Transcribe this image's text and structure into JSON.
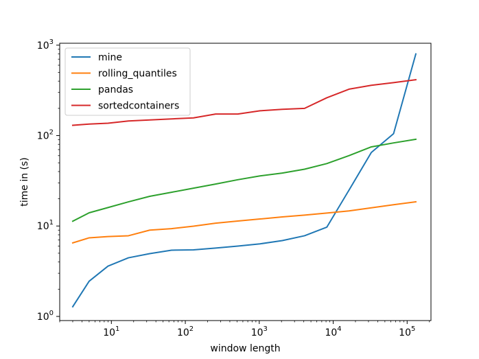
{
  "chart_data": {
    "type": "line",
    "title": "",
    "xlabel": "window length",
    "ylabel": "time in (s)",
    "xscale": "log",
    "yscale": "log",
    "xlim": [
      2.0,
      210000
    ],
    "ylim": [
      0.9,
      1050
    ],
    "grid": false,
    "legend_position": "top-left",
    "xticks": [
      {
        "value": 10,
        "base": "10",
        "exp": "1"
      },
      {
        "value": 100,
        "base": "10",
        "exp": "2"
      },
      {
        "value": 1000,
        "base": "10",
        "exp": "3"
      },
      {
        "value": 10000,
        "base": "10",
        "exp": "4"
      },
      {
        "value": 100000,
        "base": "10",
        "exp": "5"
      }
    ],
    "yticks": [
      {
        "value": 1,
        "base": "10",
        "exp": "0"
      },
      {
        "value": 10,
        "base": "10",
        "exp": "1"
      },
      {
        "value": 100,
        "base": "10",
        "exp": "2"
      },
      {
        "value": 1000,
        "base": "10",
        "exp": "3"
      }
    ],
    "x": [
      3,
      5,
      9,
      17,
      33,
      65,
      129,
      257,
      513,
      1025,
      2049,
      4097,
      8193,
      16385,
      32769,
      65537,
      131073
    ],
    "series": [
      {
        "name": "mine",
        "color": "#1f77b4",
        "values": [
          1.28,
          2.45,
          3.6,
          4.45,
          4.95,
          5.4,
          5.45,
          5.7,
          6.0,
          6.35,
          6.9,
          7.8,
          9.7,
          25,
          65,
          105,
          800
        ]
      },
      {
        "name": "rolling_quantiles",
        "color": "#ff7f0e",
        "values": [
          6.5,
          7.4,
          7.65,
          7.8,
          9.0,
          9.35,
          9.95,
          10.75,
          11.35,
          11.95,
          12.6,
          13.2,
          13.9,
          14.7,
          15.9,
          17.2,
          18.5
        ]
      },
      {
        "name": "pandas",
        "color": "#2ca02c",
        "values": [
          11.3,
          14.0,
          16.0,
          18.5,
          21.3,
          23.6,
          26.2,
          29.1,
          32.5,
          35.8,
          38.5,
          42.5,
          49.0,
          60.0,
          75.0,
          83.0,
          91.0
        ]
      },
      {
        "name": "sortedcontainers",
        "color": "#d62728",
        "values": [
          130,
          134,
          137,
          145,
          149,
          153,
          157,
          173,
          173,
          188,
          195,
          200,
          262,
          326,
          360,
          385,
          415
        ]
      }
    ]
  }
}
